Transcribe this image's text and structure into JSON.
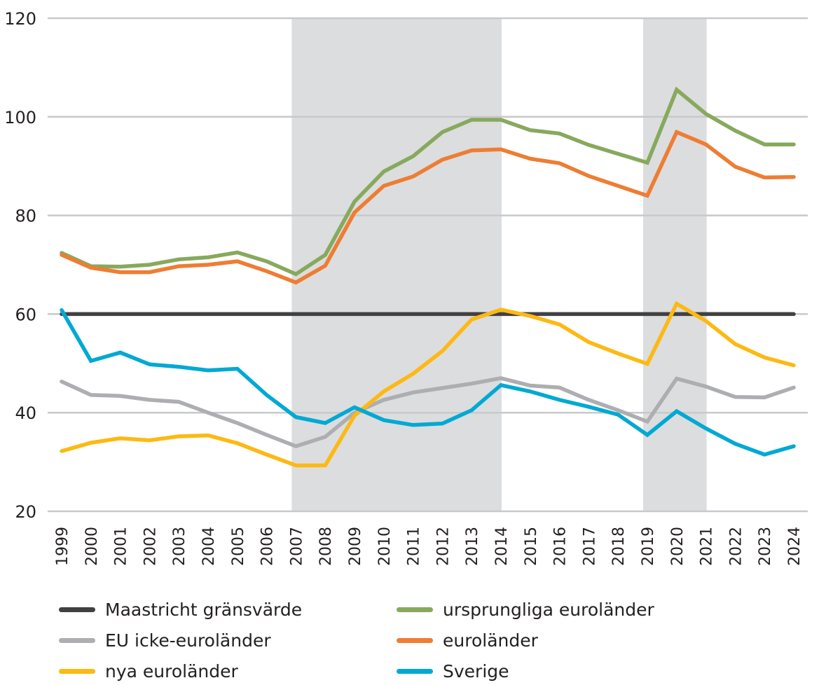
{
  "chart_data": {
    "type": "line",
    "title": "",
    "xlabel": "",
    "ylabel": "",
    "ylim": [
      20,
      120
    ],
    "yticks": [
      20,
      40,
      60,
      80,
      100,
      120
    ],
    "ytick_labels": [
      "20",
      "40",
      "60",
      "80",
      "100",
      "120"
    ],
    "grid": true,
    "legend_position": "bottom",
    "x": [
      "1999",
      "2000",
      "2001",
      "2002",
      "2003",
      "2004",
      "2005",
      "2006",
      "2007",
      "2008",
      "2009",
      "2010",
      "2011",
      "2012",
      "2013",
      "2014",
      "2015",
      "2016",
      "2017",
      "2018",
      "2019",
      "2020",
      "2021",
      "2022",
      "2023",
      "2024"
    ],
    "shaded_periods": [
      {
        "from": "2007",
        "to": "2014",
        "color": "#dcdddf"
      },
      {
        "from": "2019",
        "to": "2021",
        "color": "#dcdddf"
      }
    ],
    "series": [
      {
        "name": "Maastricht gränsvärde",
        "color": "#414042",
        "values": [
          60,
          60,
          60,
          60,
          60,
          60,
          60,
          60,
          60,
          60,
          60,
          60,
          60,
          60,
          60,
          60,
          60,
          60,
          60,
          60,
          60,
          60,
          60,
          60,
          60,
          60
        ]
      },
      {
        "name": "EU icke-euroländer",
        "color": "#adaeb1",
        "values": [
          46.3,
          43.6,
          43.4,
          42.6,
          42.2,
          40.0,
          37.9,
          35.5,
          33.2,
          35.1,
          40.0,
          42.6,
          44.1,
          45.0,
          45.9,
          47.0,
          45.5,
          45.1,
          42.6,
          40.5,
          38.2,
          46.9,
          45.3,
          43.2,
          43.1,
          45.1
        ]
      },
      {
        "name": "nya euroländer",
        "color": "#fdb913",
        "values": [
          32.2,
          33.9,
          34.8,
          34.4,
          35.2,
          35.4,
          33.8,
          31.5,
          29.3,
          29.3,
          39.4,
          44.3,
          47.9,
          52.5,
          58.9,
          60.9,
          59.6,
          57.9,
          54.3,
          52.0,
          49.9,
          62.1,
          58.6,
          53.9,
          51.2,
          49.6
        ]
      },
      {
        "name": "ursprungliga euroländer",
        "color": "#87a95d",
        "values": [
          72.4,
          69.7,
          69.6,
          70.0,
          71.1,
          71.5,
          72.5,
          70.7,
          68.1,
          72.0,
          82.8,
          88.9,
          92.0,
          96.9,
          99.4,
          99.4,
          97.3,
          96.6,
          94.3,
          92.5,
          90.7,
          105.5,
          100.6,
          97.2,
          94.4,
          94.4
        ]
      },
      {
        "name": "euroländer",
        "color": "#ee7d33",
        "values": [
          72.0,
          69.4,
          68.5,
          68.5,
          69.7,
          70.0,
          70.7,
          68.7,
          66.4,
          69.8,
          80.6,
          86.0,
          87.9,
          91.3,
          93.2,
          93.4,
          91.5,
          90.6,
          88.0,
          86.0,
          84.0,
          96.9,
          94.4,
          89.9,
          87.7,
          87.8
        ]
      },
      {
        "name": "Sverige",
        "color": "#00a9d4",
        "values": [
          60.8,
          50.5,
          52.2,
          49.8,
          49.3,
          48.6,
          48.9,
          43.6,
          39.1,
          37.9,
          41.1,
          38.5,
          37.5,
          37.8,
          40.5,
          45.6,
          44.3,
          42.6,
          41.2,
          39.6,
          35.5,
          40.3,
          36.8,
          33.7,
          31.5,
          33.2
        ]
      }
    ],
    "draw_order": [
      "Maastricht gränsvärde",
      "EU icke-euroländer",
      "nya euroländer",
      "ursprungliga euroländer",
      "euroländer",
      "Sverige"
    ]
  },
  "legend": [
    {
      "label": "Maastricht gränsvärde",
      "color": "#414042"
    },
    {
      "label": "EU icke-euroländer",
      "color": "#adaeb1"
    },
    {
      "label": "nya euroländer",
      "color": "#fdb913"
    },
    {
      "label": "ursprungliga euroländer",
      "color": "#87a95d"
    },
    {
      "label": "euroländer",
      "color": "#ee7d33"
    },
    {
      "label": "Sverige",
      "color": "#00a9d4"
    }
  ],
  "colors": {
    "gridline": "#c8c9cb",
    "shading": "#dcdddf",
    "text": "#231f20"
  }
}
